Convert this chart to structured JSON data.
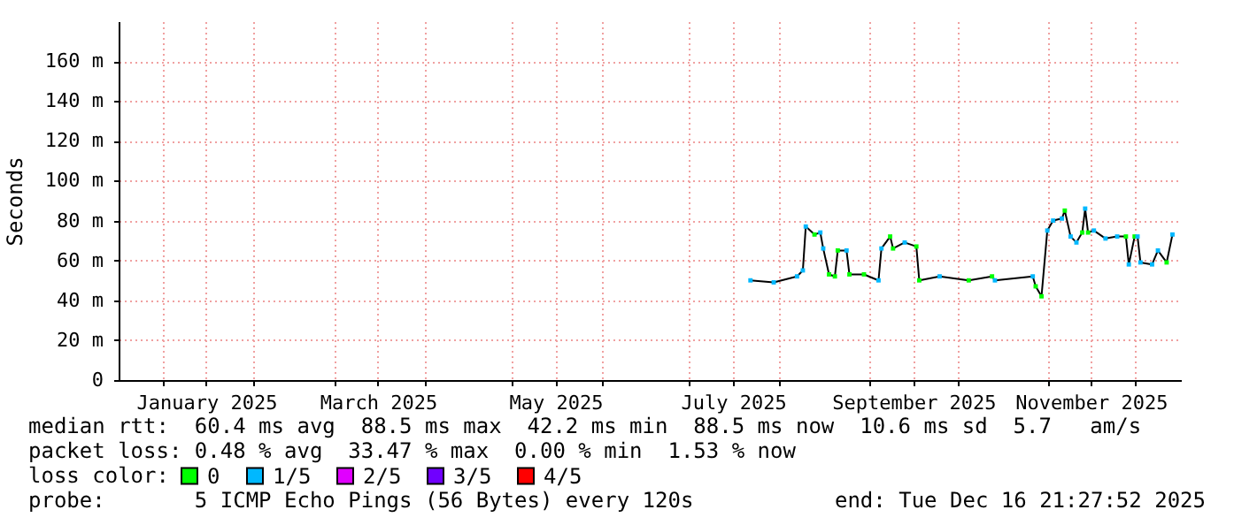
{
  "chart_data": {
    "type": "line",
    "ylabel": "Seconds",
    "legend_title": "loss color:",
    "legend": "bottom",
    "grid": true,
    "xlim": [
      "2024-12-16T21:27",
      "2025-12-16T21:27"
    ],
    "xticks": [
      {
        "value": "2025-01-01",
        "label": null
      },
      {
        "value": "2025-01-16",
        "label": "January 2025"
      },
      {
        "value": "2025-02-01",
        "label": null
      },
      {
        "value": "2025-03-01",
        "label": null
      },
      {
        "value": "2025-03-16",
        "label": "March 2025"
      },
      {
        "value": "2025-04-01",
        "label": null
      },
      {
        "value": "2025-05-01",
        "label": null
      },
      {
        "value": "2025-05-16",
        "label": "May 2025"
      },
      {
        "value": "2025-06-01",
        "label": null
      },
      {
        "value": "2025-07-01",
        "label": null
      },
      {
        "value": "2025-07-16",
        "label": "July 2025"
      },
      {
        "value": "2025-08-01",
        "label": null
      },
      {
        "value": "2025-09-01",
        "label": null
      },
      {
        "value": "2025-09-16",
        "label": "September 2025"
      },
      {
        "value": "2025-10-01",
        "label": null
      },
      {
        "value": "2025-11-01",
        "label": null
      },
      {
        "value": "2025-11-16",
        "label": "November 2025"
      },
      {
        "value": "2025-12-01",
        "label": null
      }
    ],
    "ylim": [
      0,
      180
    ],
    "yticks": [
      0,
      {
        "value": 20,
        "label": "20 m"
      },
      {
        "value": 40,
        "label": "40 m"
      },
      {
        "value": 60,
        "label": "60 m"
      },
      {
        "value": 80,
        "label": "80 m"
      },
      {
        "value": 100,
        "label": "100 m"
      },
      {
        "value": 120,
        "label": "120 m"
      },
      {
        "value": 140,
        "label": "140 m"
      },
      {
        "value": 160,
        "label": "160 m"
      }
    ],
    "series": [
      {
        "color": "#000000",
        "x": [
          "2025-07-22",
          "2025-07-30",
          "2025-08-07",
          "2025-08-09",
          "2025-08-10",
          "2025-08-13",
          "2025-08-15",
          "2025-08-16",
          "2025-08-18",
          "2025-08-20",
          "2025-08-21",
          "2025-08-24",
          "2025-08-25",
          "2025-08-30",
          "2025-09-04",
          "2025-09-05",
          "2025-09-08",
          "2025-09-09",
          "2025-09-13",
          "2025-09-17",
          "2025-09-18",
          "2025-09-25",
          "2025-10-05",
          "2025-10-13",
          "2025-10-14",
          "2025-10-27",
          "2025-10-28",
          "2025-10-30",
          "2025-11-01",
          "2025-11-03",
          "2025-11-06",
          "2025-11-07",
          "2025-11-09",
          "2025-11-11",
          "2025-11-13",
          "2025-11-14",
          "2025-11-15",
          "2025-11-17",
          "2025-11-21",
          "2025-11-25",
          "2025-11-28",
          "2025-11-29",
          "2025-12-01",
          "2025-12-02",
          "2025-12-03",
          "2025-12-07",
          "2025-12-09",
          "2025-12-12",
          "2025-12-14"
        ],
        "values": [
          50,
          49,
          52,
          55,
          77,
          73,
          74,
          66,
          53,
          52,
          65,
          65,
          53,
          53,
          50,
          66,
          72,
          66,
          69,
          67,
          50,
          52,
          50,
          52,
          50,
          52,
          47,
          42,
          75,
          80,
          81,
          85,
          72,
          69,
          74,
          86,
          74,
          75,
          71,
          72,
          72,
          58,
          72,
          72,
          59,
          58,
          65,
          59,
          73
        ]
      },
      {
        "type": "scatter",
        "name": "0",
        "color": "#00ff00",
        "marker": "square",
        "x": [
          "2025-08-13",
          "2025-08-18",
          "2025-08-20",
          "2025-08-21",
          "2025-08-25",
          "2025-08-30",
          "2025-09-08",
          "2025-09-09",
          "2025-09-17",
          "2025-09-18",
          "2025-10-05",
          "2025-10-13",
          "2025-10-28",
          "2025-10-30",
          "2025-11-07",
          "2025-11-13",
          "2025-11-15",
          "2025-11-28",
          "2025-12-01",
          "2025-12-12"
        ],
        "values": [
          73,
          53,
          52,
          65,
          53,
          53,
          72,
          66,
          67,
          50,
          50,
          52,
          47,
          42,
          85,
          74,
          74,
          72,
          72,
          59
        ]
      },
      {
        "type": "scatter",
        "name": "1/5",
        "color": "#00b8ff",
        "marker": "square",
        "x": [
          "2025-07-22",
          "2025-07-30",
          "2025-08-07",
          "2025-08-09",
          "2025-08-10",
          "2025-08-15",
          "2025-08-16",
          "2025-08-24",
          "2025-09-04",
          "2025-09-05",
          "2025-09-13",
          "2025-09-25",
          "2025-10-14",
          "2025-10-27",
          "2025-11-01",
          "2025-11-03",
          "2025-11-06",
          "2025-11-09",
          "2025-11-11",
          "2025-11-14",
          "2025-11-17",
          "2025-11-21",
          "2025-11-25",
          "2025-11-29",
          "2025-12-02",
          "2025-12-03",
          "2025-12-07",
          "2025-12-09",
          "2025-12-14"
        ],
        "values": [
          50,
          49,
          52,
          55,
          77,
          74,
          66,
          65,
          50,
          66,
          69,
          52,
          50,
          52,
          75,
          80,
          81,
          72,
          69,
          86,
          75,
          71,
          72,
          58,
          72,
          59,
          58,
          65,
          73
        ]
      },
      {
        "type": "scatter",
        "name": "2/5",
        "color": "#e000ff",
        "marker": "square"
      },
      {
        "type": "scatter",
        "name": "3/5",
        "color": "#7000ff",
        "marker": "square"
      },
      {
        "type": "scatter",
        "name": "4/5",
        "color": "#ff0000",
        "marker": "square"
      }
    ],
    "annotations": [
      "median rtt:  60.4 ms avg  88.5 ms max  42.2 ms min  88.5 ms now  10.6 ms sd  5.7   am/s",
      "packet loss: 0.48 % avg  33.47 % max  0.00 % min  1.53 % now",
      "probe:       5 ICMP Echo Pings (56 Bytes) every 120s",
      "end: Tue Dec 16 21:27:52 2025"
    ]
  }
}
